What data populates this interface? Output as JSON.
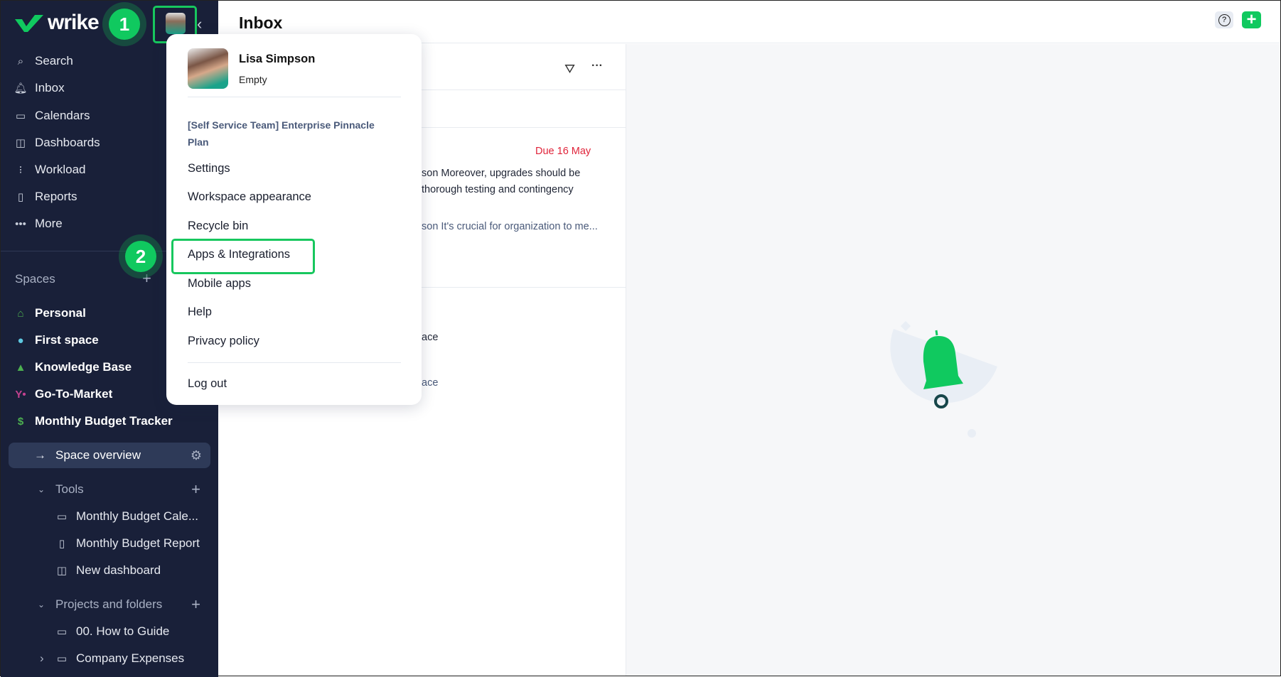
{
  "app": {
    "logo": "wrike",
    "accent": "#10c95f"
  },
  "header": {
    "title": "Inbox",
    "help_icon": "question-circle-icon",
    "add_icon": "plus-icon"
  },
  "sidebar": {
    "nav": [
      {
        "label": "Search",
        "icon": "search-icon"
      },
      {
        "label": "Inbox",
        "icon": "bell-icon"
      },
      {
        "label": "Calendars",
        "icon": "calendar-icon"
      },
      {
        "label": "Dashboards",
        "icon": "dashboard-icon"
      },
      {
        "label": "Workload",
        "icon": "workload-icon"
      },
      {
        "label": "Reports",
        "icon": "report-icon"
      },
      {
        "label": "More",
        "icon": "more-icon"
      }
    ],
    "spaces_label": "Spaces",
    "spaces": [
      {
        "label": "Personal",
        "icon": "home-icon",
        "color": "#4caf50"
      },
      {
        "label": "First space",
        "icon": "globe-icon",
        "color": "#5ec8e0"
      },
      {
        "label": "Knowledge Base",
        "icon": "graduation-cap-icon",
        "color": "#4caf50"
      },
      {
        "label": "Go-To-Market",
        "icon": "branch-icon",
        "color": "#c2418f"
      },
      {
        "label": "Monthly Budget Tracker",
        "icon": "dollar-icon",
        "color": "#4caf50"
      }
    ],
    "space_overview": "Space overview",
    "tools_label": "Tools",
    "tools": [
      {
        "label": "Monthly Budget Cale...",
        "icon": "calendar-icon"
      },
      {
        "label": "Monthly Budget Report",
        "icon": "report-icon"
      },
      {
        "label": "New dashboard",
        "icon": "dashboard-icon"
      }
    ],
    "projects_label": "Projects and folders",
    "projects": [
      {
        "label": "00. How to Guide",
        "icon": "folder-icon"
      },
      {
        "label": "Company Expenses",
        "icon": "folder-icon"
      }
    ]
  },
  "inbox": {
    "due": "Due 16 May",
    "line1": "son Moreover, upgrades should be",
    "line2": "thorough testing and contingency",
    "line3": "son It's crucial for organization to me...",
    "line4": "ace",
    "line5": "ace"
  },
  "dropdown": {
    "user_name": "Lisa Simpson",
    "user_status": "Empty",
    "plan": "[Self Service Team] Enterprise Pinnacle Plan",
    "items": [
      "Settings",
      "Workspace appearance",
      "Recycle bin",
      "Apps & Integrations",
      "Mobile apps",
      "Help",
      "Privacy policy"
    ],
    "logout": "Log out"
  },
  "annotations": {
    "step1": "1",
    "step2": "2"
  }
}
